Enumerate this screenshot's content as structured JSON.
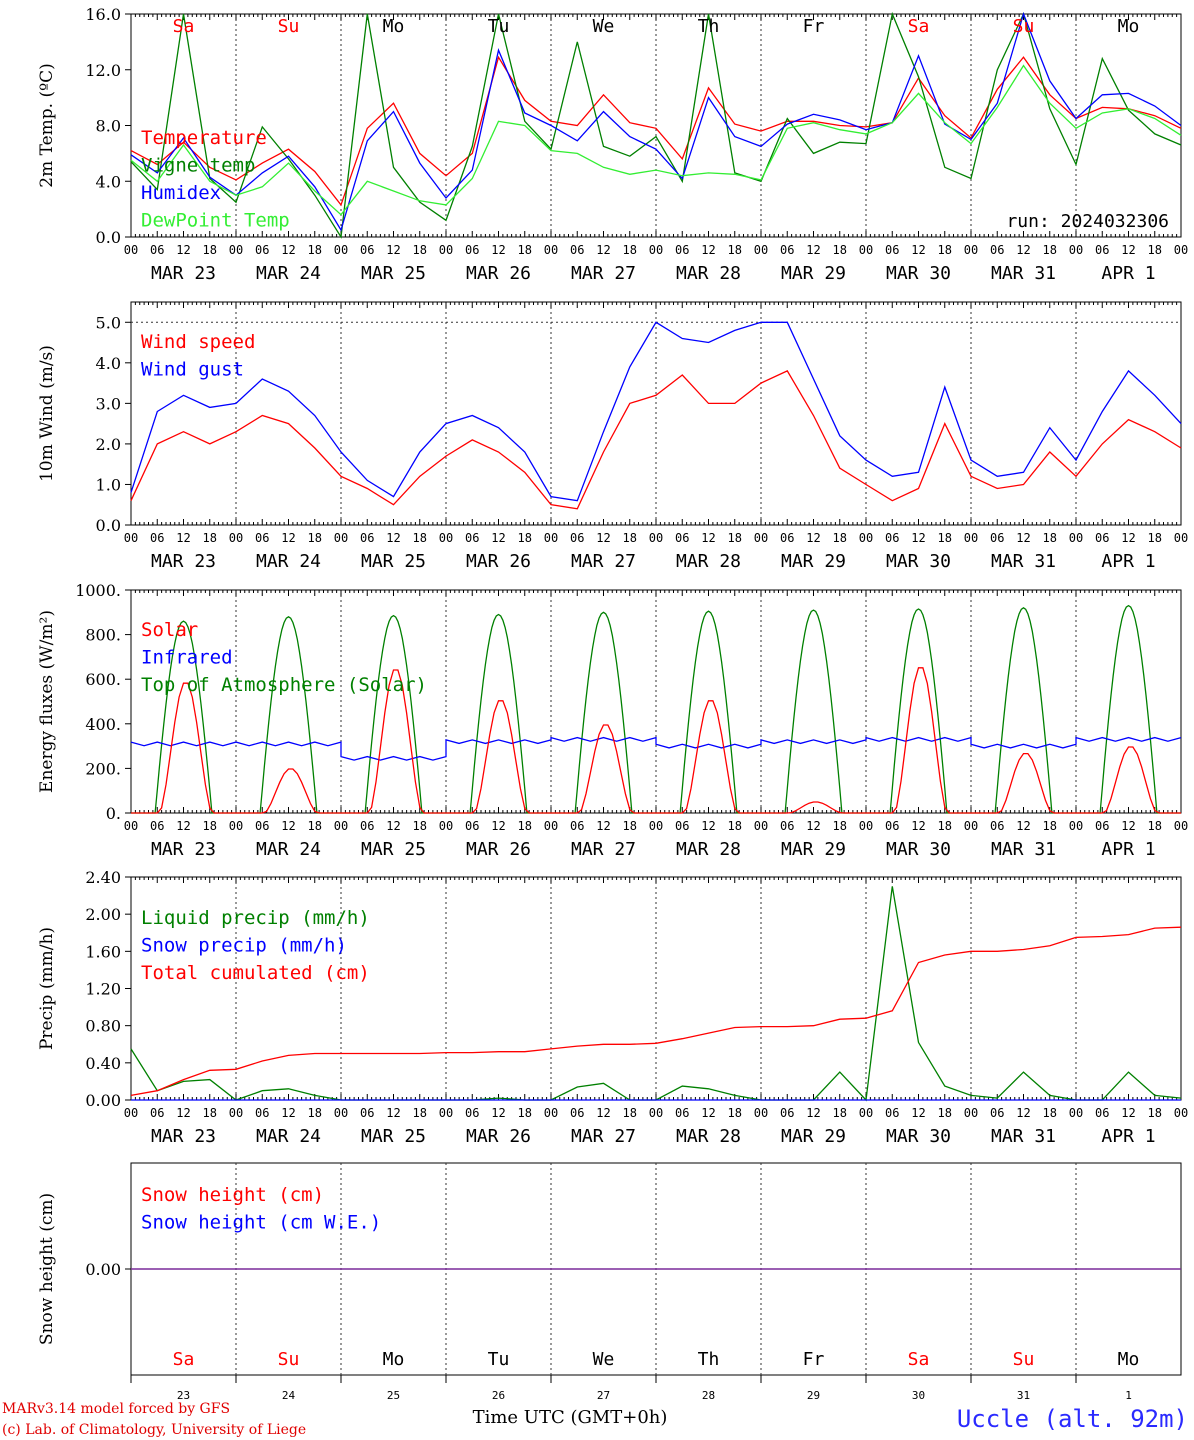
{
  "colors": {
    "red": "#ff0000",
    "blue": "#0000ff",
    "green": "#008000",
    "lightgreen": "#33ee33",
    "purple": "#7a2a9a",
    "grid": "#333333"
  },
  "days": {
    "weekdays": [
      "Sa",
      "Su",
      "Mo",
      "Tu",
      "We",
      "Th",
      "Fr",
      "Sa",
      "Su",
      "Mo"
    ],
    "weekday_colors": [
      "red",
      "red",
      "black",
      "black",
      "black",
      "black",
      "black",
      "red",
      "red",
      "black"
    ],
    "dates": [
      "MAR 23",
      "MAR 24",
      "MAR 25",
      "MAR 26",
      "MAR 27",
      "MAR 28",
      "MAR 29",
      "MAR 30",
      "MAR 31",
      "APR  1"
    ],
    "daynums": [
      "23",
      "24",
      "25",
      "26",
      "27",
      "28",
      "29",
      "30",
      "31",
      "1"
    ],
    "hour_ticks": [
      "00",
      "06",
      "12",
      "18"
    ],
    "final_tick": "00"
  },
  "footer": {
    "model_line": "MARv3.14 model forced by GFS",
    "lab_line": "(c) Lab. of Climatology, University of Liege",
    "xaxis_label": "Time UTC (GMT+0h)",
    "station": "Uccle (alt. 92m)"
  },
  "chart_data": [
    {
      "type": "line",
      "id": "temp",
      "ylabel": "2m Temp. (ºC)",
      "ylim": [
        0,
        16
      ],
      "yticks": [
        "0.0",
        "4.0",
        "8.0",
        "12.0",
        "16.0"
      ],
      "run_label": "run: 2024032306",
      "legend": [
        "Temperature",
        "Vigne temp",
        "Humidex",
        "DewPoint Temp"
      ],
      "x_unit": "hours since MAR 23 00 UTC",
      "x": [
        0,
        6,
        12,
        18,
        24,
        30,
        36,
        42,
        48,
        54,
        60,
        66,
        72,
        78,
        84,
        90,
        96,
        102,
        108,
        114,
        120,
        126,
        132,
        138,
        144,
        150,
        156,
        162,
        168,
        174,
        180,
        186,
        192,
        198,
        204,
        210,
        216,
        222,
        228,
        234,
        240
      ],
      "series": [
        {
          "name": "Temperature",
          "color": "red",
          "values": [
            6.2,
            5.2,
            6.8,
            5.0,
            4.1,
            5.3,
            6.3,
            4.7,
            2.3,
            7.8,
            9.6,
            6.0,
            4.4,
            6.0,
            12.9,
            9.8,
            8.3,
            8.0,
            10.2,
            8.2,
            7.8,
            5.6,
            10.7,
            8.1,
            7.6,
            8.3,
            8.3,
            8.0,
            7.9,
            8.2,
            11.4,
            8.7,
            7.1,
            10.6,
            12.9,
            10.2,
            8.5,
            9.3,
            9.2,
            8.7,
            7.8
          ]
        },
        {
          "name": "Vigne temp",
          "color": "green",
          "values": [
            5.4,
            3.4,
            16.0,
            4.2,
            2.5,
            7.9,
            5.6,
            3.0,
            0.0,
            16.0,
            5.0,
            2.5,
            1.2,
            6.5,
            16.0,
            8.3,
            6.3,
            14.0,
            6.5,
            5.8,
            7.2,
            4.0,
            16.0,
            4.6,
            4.0,
            8.5,
            6.0,
            6.8,
            6.7,
            16.0,
            11.5,
            5.0,
            4.2,
            12.0,
            16.0,
            9.2,
            5.2,
            12.8,
            9.1,
            7.4,
            6.6
          ]
        },
        {
          "name": "Humidex",
          "color": "blue",
          "values": [
            5.9,
            4.6,
            7.1,
            4.3,
            3.0,
            4.6,
            5.8,
            3.6,
            0.5,
            6.9,
            9.0,
            5.3,
            2.8,
            4.8,
            13.4,
            8.9,
            8.0,
            6.9,
            9.0,
            7.2,
            6.3,
            4.2,
            10.0,
            7.2,
            6.5,
            8.1,
            8.8,
            8.4,
            7.7,
            8.2,
            13.0,
            8.1,
            7.0,
            9.6,
            16.0,
            11.2,
            8.5,
            10.2,
            10.3,
            9.4,
            8.0
          ]
        },
        {
          "name": "DewPoint Temp",
          "color": "lightgreen",
          "values": [
            5.5,
            4.0,
            6.6,
            4.0,
            3.0,
            3.6,
            5.3,
            3.3,
            1.6,
            4.0,
            3.3,
            2.6,
            2.3,
            4.2,
            8.3,
            8.0,
            6.2,
            6.0,
            5.0,
            4.5,
            4.8,
            4.4,
            4.6,
            4.5,
            4.1,
            7.8,
            8.2,
            7.7,
            7.4,
            8.2,
            10.3,
            8.2,
            6.7,
            9.3,
            12.3,
            9.6,
            7.8,
            8.9,
            9.2,
            8.5,
            7.3
          ]
        }
      ]
    },
    {
      "type": "line",
      "id": "wind",
      "ylabel": "10m Wind (m/s)",
      "ylim": [
        0,
        5.5
      ],
      "yticks": [
        "0.0",
        "1.0",
        "2.0",
        "3.0",
        "4.0",
        "5.0"
      ],
      "legend": [
        "Wind speed",
        "Wind gust"
      ],
      "x": [
        0,
        6,
        12,
        18,
        24,
        30,
        36,
        42,
        48,
        54,
        60,
        66,
        72,
        78,
        84,
        90,
        96,
        102,
        108,
        114,
        120,
        126,
        132,
        138,
        144,
        150,
        156,
        162,
        168,
        174,
        180,
        186,
        192,
        198,
        204,
        210,
        216,
        222,
        228,
        234,
        240
      ],
      "series": [
        {
          "name": "Wind speed",
          "color": "red",
          "values": [
            0.6,
            2.0,
            2.3,
            2.0,
            2.3,
            2.7,
            2.5,
            1.9,
            1.2,
            0.9,
            0.5,
            1.2,
            1.7,
            2.1,
            1.8,
            1.3,
            0.5,
            0.4,
            1.8,
            3.0,
            3.2,
            3.7,
            3.0,
            3.0,
            3.5,
            3.8,
            2.7,
            1.4,
            1.0,
            0.6,
            0.9,
            2.5,
            1.2,
            0.9,
            1.0,
            1.8,
            1.2,
            2.0,
            2.6,
            2.3,
            1.9
          ]
        },
        {
          "name": "Wind gust",
          "color": "blue",
          "values": [
            0.8,
            2.8,
            3.2,
            2.9,
            3.0,
            3.6,
            3.3,
            2.7,
            1.8,
            1.1,
            0.7,
            1.8,
            2.5,
            2.7,
            2.4,
            1.8,
            0.7,
            0.6,
            2.3,
            3.9,
            5.0,
            4.6,
            4.5,
            4.8,
            5.0,
            5.0,
            3.6,
            2.2,
            1.6,
            1.2,
            1.3,
            3.4,
            1.6,
            1.2,
            1.3,
            2.4,
            1.6,
            2.8,
            3.8,
            3.2,
            2.5
          ]
        }
      ]
    },
    {
      "type": "line",
      "id": "energy",
      "ylabel": "Energy fluxes (W/m²)",
      "ylim": [
        0,
        1000
      ],
      "yticks": [
        "0.",
        "200.",
        "400.",
        "600.",
        "800.",
        "1000."
      ],
      "legend": [
        "Solar",
        "Infrared",
        "Top of Atmosphere (Solar)"
      ],
      "series": [
        {
          "name": "Solar",
          "color": "red",
          "peaks": [
            590,
            200,
            650,
            510,
            400,
            510,
            50,
            660,
            270,
            300
          ]
        },
        {
          "name": "Infrared",
          "color": "blue",
          "values_by_day": [
            310,
            310,
            245,
            320,
            330,
            300,
            320,
            330,
            300,
            330
          ]
        },
        {
          "name": "Top of Atmosphere (Solar)",
          "color": "green",
          "peaks": [
            860,
            880,
            885,
            890,
            900,
            905,
            910,
            915,
            920,
            930
          ]
        }
      ]
    },
    {
      "type": "line",
      "id": "precip",
      "ylabel": "Precip (mm/h)",
      "ylim": [
        0,
        2.4
      ],
      "yticks": [
        "0.00",
        "0.40",
        "0.80",
        "1.20",
        "1.60",
        "2.00",
        "2.40"
      ],
      "legend": [
        "Liquid precip (mm/h)",
        "Snow precip (mm/h)",
        "Total cumulated (cm)"
      ],
      "x": [
        0,
        6,
        12,
        18,
        24,
        30,
        36,
        42,
        48,
        54,
        60,
        66,
        72,
        78,
        84,
        90,
        96,
        102,
        108,
        114,
        120,
        126,
        132,
        138,
        144,
        150,
        156,
        162,
        168,
        174,
        180,
        186,
        192,
        198,
        204,
        210,
        216,
        222,
        228,
        234,
        240
      ],
      "series": [
        {
          "name": "Liquid precip (mm/h)",
          "color": "green",
          "values": [
            0.55,
            0.1,
            0.2,
            0.22,
            0.0,
            0.1,
            0.12,
            0.05,
            0.0,
            0.0,
            0.0,
            0.0,
            0.0,
            0.0,
            0.02,
            0.0,
            0.0,
            0.14,
            0.18,
            0.0,
            0.0,
            0.15,
            0.12,
            0.05,
            0.0,
            0.0,
            0.0,
            0.3,
            0.0,
            2.3,
            0.62,
            0.15,
            0.05,
            0.02,
            0.3,
            0.05,
            0.0,
            0.0,
            0.3,
            0.05,
            0.02
          ]
        },
        {
          "name": "Snow precip (mm/h)",
          "color": "blue",
          "values": [
            0,
            0,
            0,
            0,
            0,
            0,
            0,
            0,
            0,
            0,
            0,
            0,
            0,
            0,
            0,
            0,
            0,
            0,
            0,
            0,
            0,
            0,
            0,
            0,
            0,
            0,
            0,
            0,
            0,
            0,
            0,
            0,
            0,
            0,
            0,
            0,
            0,
            0,
            0,
            0,
            0
          ]
        },
        {
          "name": "Total cumulated (cm)",
          "color": "red",
          "values": [
            0.05,
            0.1,
            0.22,
            0.32,
            0.33,
            0.42,
            0.48,
            0.5,
            0.5,
            0.5,
            0.5,
            0.5,
            0.51,
            0.51,
            0.52,
            0.52,
            0.55,
            0.58,
            0.6,
            0.6,
            0.61,
            0.66,
            0.72,
            0.78,
            0.79,
            0.79,
            0.8,
            0.87,
            0.88,
            0.96,
            1.48,
            1.56,
            1.6,
            1.6,
            1.62,
            1.66,
            1.75,
            1.76,
            1.78,
            1.85,
            1.86
          ]
        }
      ]
    },
    {
      "type": "line",
      "id": "snow",
      "ylabel": "Snow height (cm)",
      "ylim": [
        -1,
        1
      ],
      "yticks": [
        "0.00"
      ],
      "legend": [
        "Snow height (cm)",
        "Snow height (cm W.E.)"
      ],
      "series": [
        {
          "name": "Snow height (cm)",
          "color": "red",
          "values": [
            0,
            0
          ]
        },
        {
          "name": "Snow height (cm W.E.)",
          "color": "blue",
          "values": [
            0,
            0
          ]
        }
      ]
    }
  ]
}
